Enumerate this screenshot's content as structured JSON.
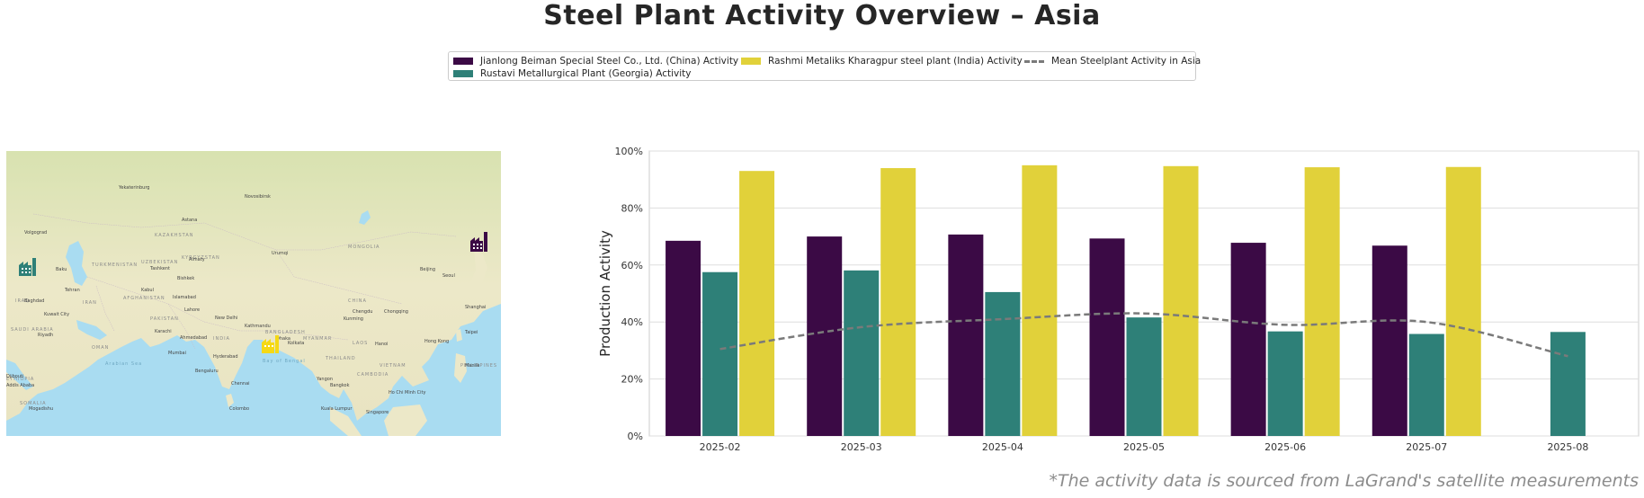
{
  "title": "Steel Plant Activity Overview – Asia",
  "source_note": "*The activity data is sourced from LaGrand's satellite measurements",
  "legend": {
    "items": [
      {
        "label": "Jianlong Beiman Special Steel Co., Ltd. (China) Activity",
        "color": "#3b0a45"
      },
      {
        "label": "Rashmi Metaliks Kharagpur steel plant (India) Activity",
        "color": "#e1d13a"
      },
      {
        "label": "Mean Steelplant Activity in Asia",
        "color": "#7a7a7a"
      },
      {
        "label": "Rustavi Metallurgical Plant (Georgia) Activity",
        "color": "#2e8078"
      }
    ]
  },
  "map": {
    "icons": [
      {
        "name": "factory-icon-china",
        "color": "#3b0a45"
      },
      {
        "name": "factory-icon-georgia",
        "color": "#2e8078"
      },
      {
        "name": "factory-icon-india",
        "color": "#f5d915"
      }
    ],
    "places": [
      "Yekaterinburg",
      "Novosibirsk",
      "Volgograd",
      "Astana",
      "Baku",
      "Tehran",
      "Baghdad",
      "Kuwait City",
      "Riyadh",
      "Karachi",
      "Ahmedabad",
      "Mumbai",
      "Bengaluru",
      "Hyderabad",
      "Chennai",
      "Colombo",
      "New Delhi",
      "Dhaka",
      "Kolkata",
      "Kathmandu",
      "Yangon",
      "Bangkok",
      "Hanoi",
      "Kunming",
      "Chengdu",
      "Chongqing",
      "Beijing",
      "Shanghai",
      "Seoul",
      "Hong Kong",
      "Taipei",
      "Manila",
      "Ho Chi Minh City",
      "Kuala Lumpur",
      "Singapore",
      "Urumqi",
      "Tashkent",
      "Bishkek",
      "Almaty",
      "Kabul",
      "Islamabad",
      "Lahore",
      "Djibouti",
      "Addis Ababa",
      "Mogadishu"
    ],
    "countries": [
      "KAZAKHSTAN",
      "MONGOLIA",
      "CHINA",
      "IRAN",
      "INDIA",
      "PAKISTAN",
      "AFGHANISTAN",
      "TURKMENISTAN",
      "UZBEKISTAN",
      "KYRGYZSTAN",
      "SAUDI ARABIA",
      "OMAN",
      "MYANMAR",
      "THAILAND",
      "LAOS",
      "VIETNAM",
      "CAMBODIA",
      "PHILIPPINES",
      "IRAQ",
      "SOMALIA",
      "ETHIOPIA",
      "BANGLADESH"
    ],
    "seas": [
      "Arabian Sea",
      "Bay of Bengal"
    ]
  },
  "chart_data": {
    "type": "bar",
    "title": "",
    "xlabel": "",
    "ylabel": "Production Activity",
    "ylim": [
      0,
      100
    ],
    "yticks": [
      "0%",
      "20%",
      "40%",
      "60%",
      "80%",
      "100%"
    ],
    "categories": [
      "2025-02",
      "2025-03",
      "2025-04",
      "2025-05",
      "2025-06",
      "2025-07",
      "2025-08"
    ],
    "series": [
      {
        "name": "Jianlong Beiman Special Steel Co., Ltd. (China) Activity",
        "color": "#3b0a45",
        "values": [
          68.5,
          70,
          70.7,
          69.3,
          67.8,
          66.8,
          null
        ]
      },
      {
        "name": "Rustavi Metallurgical Plant (Georgia) Activity",
        "color": "#2e8078",
        "values": [
          57.5,
          58.1,
          50.5,
          41.6,
          36.7,
          35.8,
          36.5
        ]
      },
      {
        "name": "Rashmi Metaliks Kharagpur steel plant (India) Activity",
        "color": "#e1d13a",
        "values": [
          93.0,
          94.0,
          95.0,
          94.7,
          94.3,
          94.4,
          null
        ]
      }
    ],
    "mean_line": {
      "name": "Mean Steelplant Activity in Asia",
      "color": "#7a7a7a",
      "values": [
        30.5,
        38.2,
        41.0,
        43.0,
        39.0,
        40.0,
        28.0
      ]
    },
    "grid": true,
    "legend_position": "top-center"
  }
}
